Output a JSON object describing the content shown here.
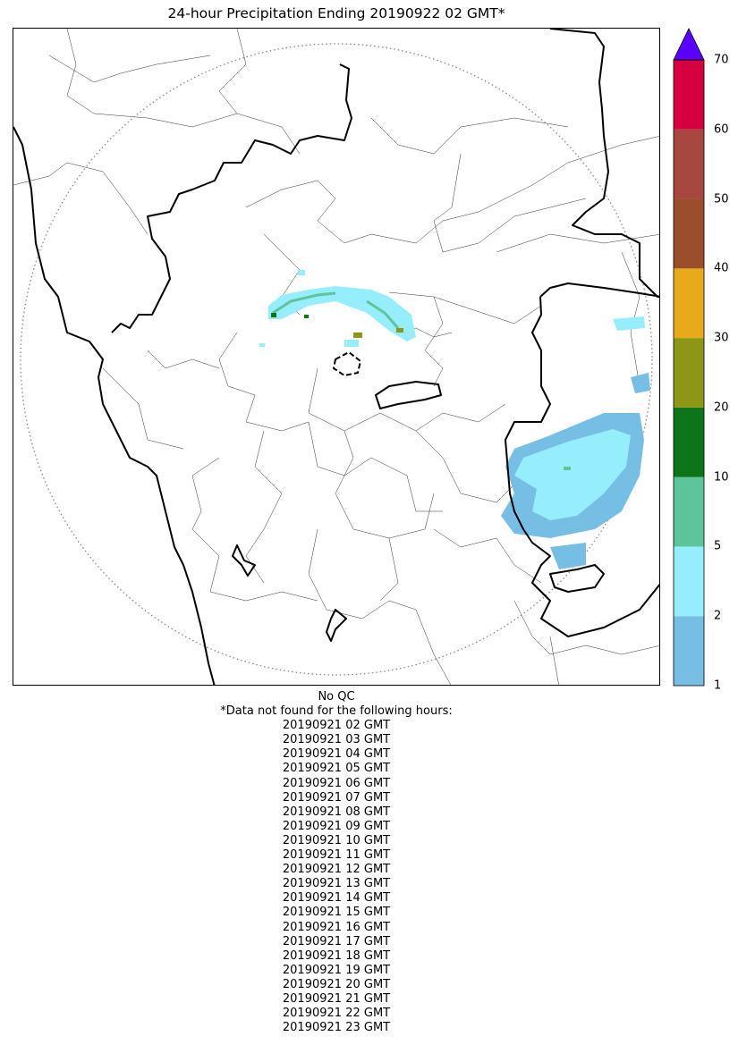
{
  "title": "24-hour Precipitation Ending 20190922 02 GMT*",
  "colorbar": {
    "levels": [
      "1",
      "2",
      "5",
      "10",
      "20",
      "30",
      "40",
      "50",
      "60",
      "70"
    ],
    "colors": [
      "#76BEE4",
      "#96EEFC",
      "#5EC49A",
      "#0E7419",
      "#8D9617",
      "#E8A91A",
      "#9B4E2A",
      "#A74840",
      "#D7003F"
    ],
    "extend_color": "#5A00FF",
    "extend": "max"
  },
  "notes": {
    "qc": "No QC",
    "missing_header": "*Data not found for the following hours:",
    "missing_hours": [
      "20190921 02 GMT",
      "20190921 03 GMT",
      "20190921 04 GMT",
      "20190921 05 GMT",
      "20190921 06 GMT",
      "20190921 07 GMT",
      "20190921 08 GMT",
      "20190921 09 GMT",
      "20190921 10 GMT",
      "20190921 11 GMT",
      "20190921 12 GMT",
      "20190921 13 GMT",
      "20190921 14 GMT",
      "20190921 15 GMT",
      "20190921 16 GMT",
      "20190921 17 GMT",
      "20190921 18 GMT",
      "20190921 19 GMT",
      "20190921 20 GMT",
      "20190921 21 GMT",
      "20190921 22 GMT",
      "20190921 23 GMT"
    ]
  }
}
